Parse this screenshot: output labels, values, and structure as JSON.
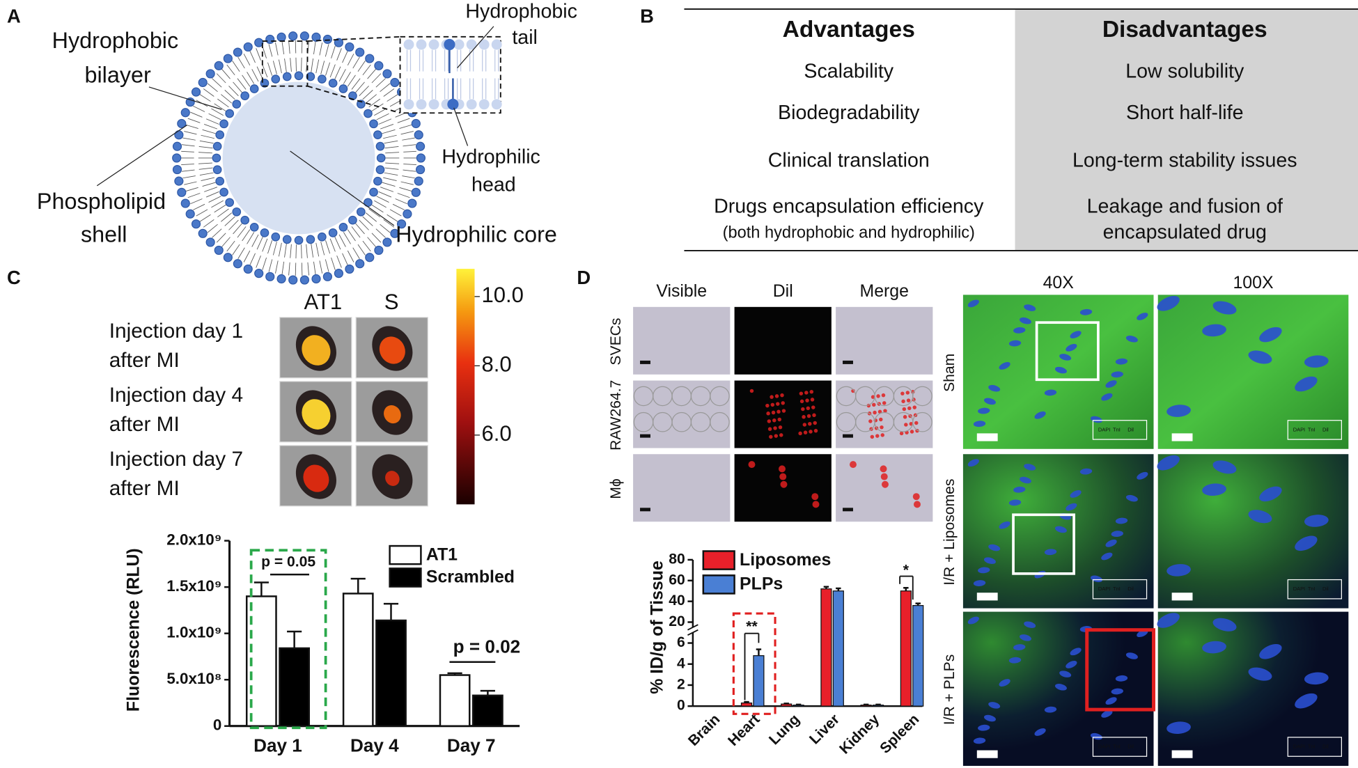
{
  "panels": {
    "a": {
      "label": "A",
      "bilayer": [
        "Hydrophobic",
        "bilayer"
      ],
      "shell": [
        "Phospholipid",
        "shell"
      ],
      "tail": [
        "Hydrophobic",
        "tail"
      ],
      "head": [
        "Hydrophilic",
        "head"
      ],
      "core": "Hydrophilic core"
    },
    "b": {
      "label": "B",
      "headers": [
        "Advantages",
        "Disadvantages"
      ],
      "rows": [
        [
          [
            "Scalability"
          ],
          [
            "Low solubility"
          ]
        ],
        [
          [
            "Biodegradability"
          ],
          [
            "Short half-life"
          ]
        ],
        [
          [
            "Clinical translation"
          ],
          [
            "Long-term stability issues"
          ]
        ],
        [
          [
            "Drugs encapsulation efficiency",
            "(both hydrophobic and hydrophilic)"
          ],
          [
            "Leakage and fusion of",
            "encapsulated drug"
          ]
        ]
      ]
    },
    "c": {
      "label": "C",
      "columns": [
        "AT1",
        "S"
      ],
      "rows": [
        [
          "Injection day 1",
          "after MI"
        ],
        [
          "Injection day 4",
          "after MI"
        ],
        [
          "Injection day 7",
          "after MI"
        ]
      ],
      "colorbar": {
        "lim": [
          4.0,
          10.8
        ],
        "ticks": [
          {
            "value": 10,
            "label": "10.0"
          },
          {
            "value": 8,
            "label": "8.0"
          },
          {
            "value": 6,
            "label": "6.0"
          }
        ]
      }
    },
    "d": {
      "label": "D",
      "columns": [
        "Visible",
        "Dil",
        "Merge"
      ],
      "rows": [
        "SVECs",
        "RAW264.7",
        "Mϕ"
      ],
      "magnifications": [
        "40X",
        "100X"
      ],
      "conditions": [
        "Sham",
        "I/R + Liposomes",
        "I/R + PLPs"
      ],
      "stain_legend": [
        "DAPI",
        "TnI",
        "Dil"
      ]
    }
  },
  "chart_data": [
    {
      "type": "bar",
      "ylabel": "Fluorescence (RLU)",
      "categories": [
        "Day 1",
        "Day 4",
        "Day 7"
      ],
      "series": [
        {
          "name": "AT1",
          "color": "#ffffff",
          "values": [
            1400000000,
            1430000000,
            550000000
          ],
          "errors": [
            150000000,
            160000000,
            20000000
          ]
        },
        {
          "name": "Scrambled",
          "color": "#000000",
          "values": [
            840000000,
            1140000000,
            330000000
          ],
          "errors": [
            180000000,
            180000000,
            50000000
          ]
        }
      ],
      "ylim": [
        0,
        2000000000
      ],
      "yticks": [
        0,
        {
          "value": 500000000,
          "label": "5.0x10⁸"
        },
        {
          "value": 1000000000,
          "label": "1.0x10⁹"
        },
        {
          "value": 1500000000,
          "label": "1.5x10⁹"
        },
        {
          "value": 2000000000,
          "label": "2.0x10⁹"
        }
      ],
      "annotations": [
        "p = 0.05",
        "p = 0.02"
      ]
    },
    {
      "type": "bar",
      "ylabel": "% ID/g of Tissue",
      "categories": [
        "Brain",
        "Heart",
        "Lung",
        "Liver",
        "Kidney",
        "Spleen"
      ],
      "series": [
        {
          "name": "Liposomes",
          "color": "#e8202a",
          "values": [
            0,
            0.3,
            0.2,
            52,
            0.1,
            50
          ],
          "errors": [
            0,
            0.1,
            0.05,
            2,
            0.05,
            3
          ]
        },
        {
          "name": "PLPs",
          "color": "#4a7fd4",
          "values": [
            0,
            4.8,
            0.1,
            50,
            0.1,
            36
          ],
          "errors": [
            0,
            0.6,
            0.05,
            2.5,
            0.05,
            2
          ]
        }
      ],
      "ylim": [
        0,
        80
      ],
      "ybreak": [
        7,
        15
      ],
      "yticks": [
        0,
        2,
        4,
        6,
        20,
        40,
        60,
        80
      ],
      "annotations": [
        "**",
        "*"
      ]
    }
  ]
}
